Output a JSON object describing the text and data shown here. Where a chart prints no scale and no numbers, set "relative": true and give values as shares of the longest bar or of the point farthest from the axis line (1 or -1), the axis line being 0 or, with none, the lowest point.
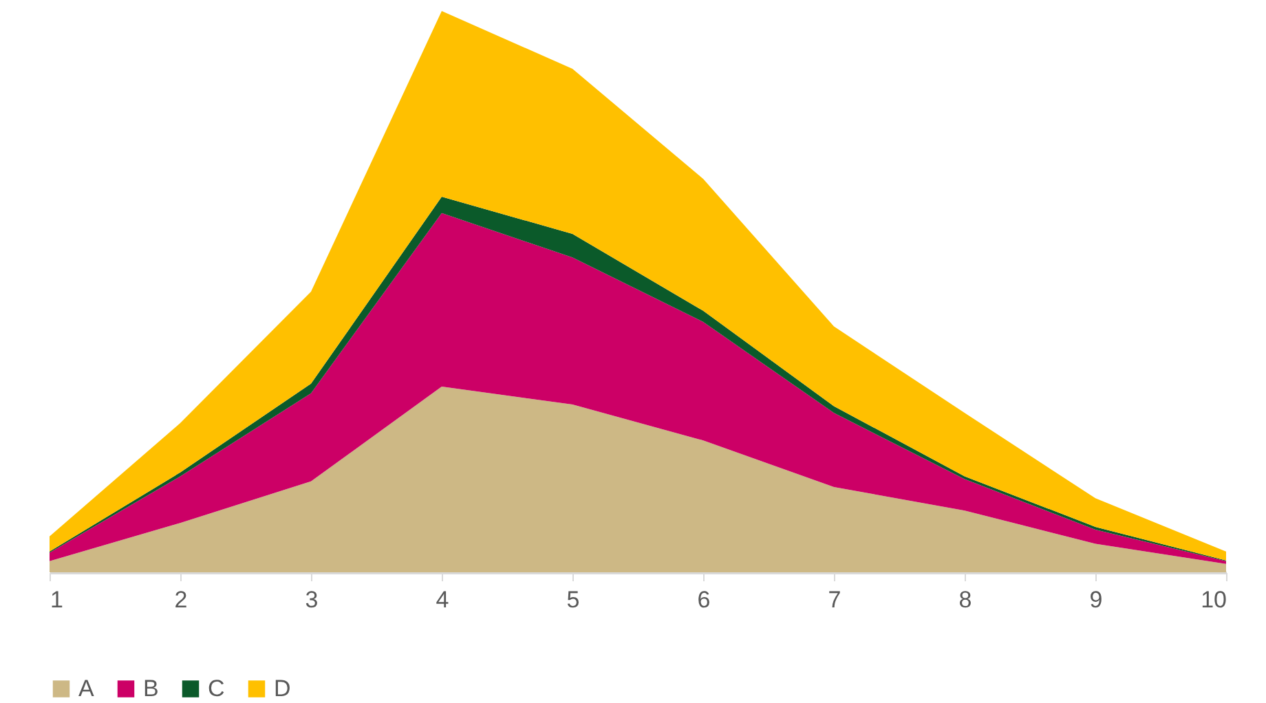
{
  "chart_data": {
    "type": "area",
    "stacked": true,
    "relative": true,
    "x": [
      1,
      2,
      3,
      4,
      5,
      6,
      7,
      8,
      9,
      10
    ],
    "xlim": [
      1,
      10
    ],
    "xticks": [
      1,
      2,
      3,
      4,
      5,
      6,
      7,
      8,
      9,
      10
    ],
    "legend": "bottom",
    "series": [
      {
        "name": "A",
        "color": "#cdb885",
        "values": [
          0.02,
          0.088,
          0.162,
          0.331,
          0.299,
          0.235,
          0.152,
          0.11,
          0.051,
          0.015
        ]
      },
      {
        "name": "B",
        "color": "#cc0066",
        "values": [
          0.015,
          0.083,
          0.157,
          0.309,
          0.262,
          0.211,
          0.132,
          0.056,
          0.025,
          0.005
        ]
      },
      {
        "name": "C",
        "color": "#0b5a2a",
        "values": [
          0.002,
          0.007,
          0.017,
          0.029,
          0.042,
          0.02,
          0.012,
          0.005,
          0.005,
          0.001
        ]
      },
      {
        "name": "D",
        "color": "#ffc000",
        "values": [
          0.027,
          0.088,
          0.164,
          0.331,
          0.294,
          0.235,
          0.142,
          0.113,
          0.051,
          0.016
        ]
      }
    ]
  }
}
